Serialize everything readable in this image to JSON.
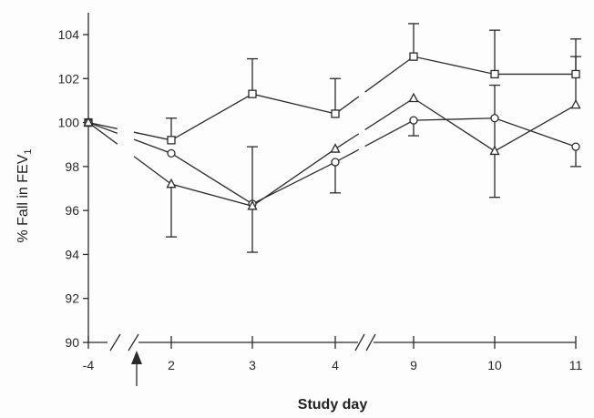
{
  "chart_data": {
    "type": "line",
    "title": "",
    "xlabel": "Study day",
    "ylabel": "% Fall in FEV",
    "ylabel_subscript": "1",
    "categories": [
      "-4",
      "2",
      "3",
      "4",
      "9",
      "10",
      "11"
    ],
    "ylim": [
      90,
      104
    ],
    "yticks": [
      "90",
      "92",
      "94",
      "96",
      "98",
      "100",
      "102",
      "104"
    ],
    "grid": false,
    "legend": "none",
    "axis_breaks_after_categories": [
      "-4",
      "4"
    ],
    "dose_marker_between": [
      "-4",
      "2"
    ],
    "series": [
      {
        "marker": "square",
        "values": [
          100.0,
          99.2,
          101.3,
          100.4,
          103.0,
          102.2,
          102.2
        ],
        "error_upper": [
          null,
          100.2,
          102.9,
          102.0,
          104.5,
          104.2,
          103.8
        ],
        "error_lower": [
          null,
          null,
          null,
          null,
          null,
          null,
          null
        ]
      },
      {
        "marker": "circle",
        "values": [
          100.0,
          98.6,
          96.3,
          98.2,
          100.1,
          100.2,
          98.9
        ],
        "error_upper": [
          null,
          null,
          null,
          null,
          null,
          null,
          null
        ],
        "error_lower": [
          null,
          null,
          null,
          96.8,
          99.4,
          null,
          98.0
        ]
      },
      {
        "marker": "triangle",
        "values": [
          100.0,
          97.2,
          96.2,
          98.8,
          101.1,
          98.7,
          100.8
        ],
        "error_upper": [
          null,
          null,
          98.9,
          null,
          null,
          101.7,
          103.0
        ],
        "error_lower": [
          null,
          94.8,
          94.1,
          null,
          null,
          96.6,
          null
        ]
      }
    ]
  },
  "colors": {
    "ink": "#2b2b2b",
    "background": "#fdfdfd"
  }
}
